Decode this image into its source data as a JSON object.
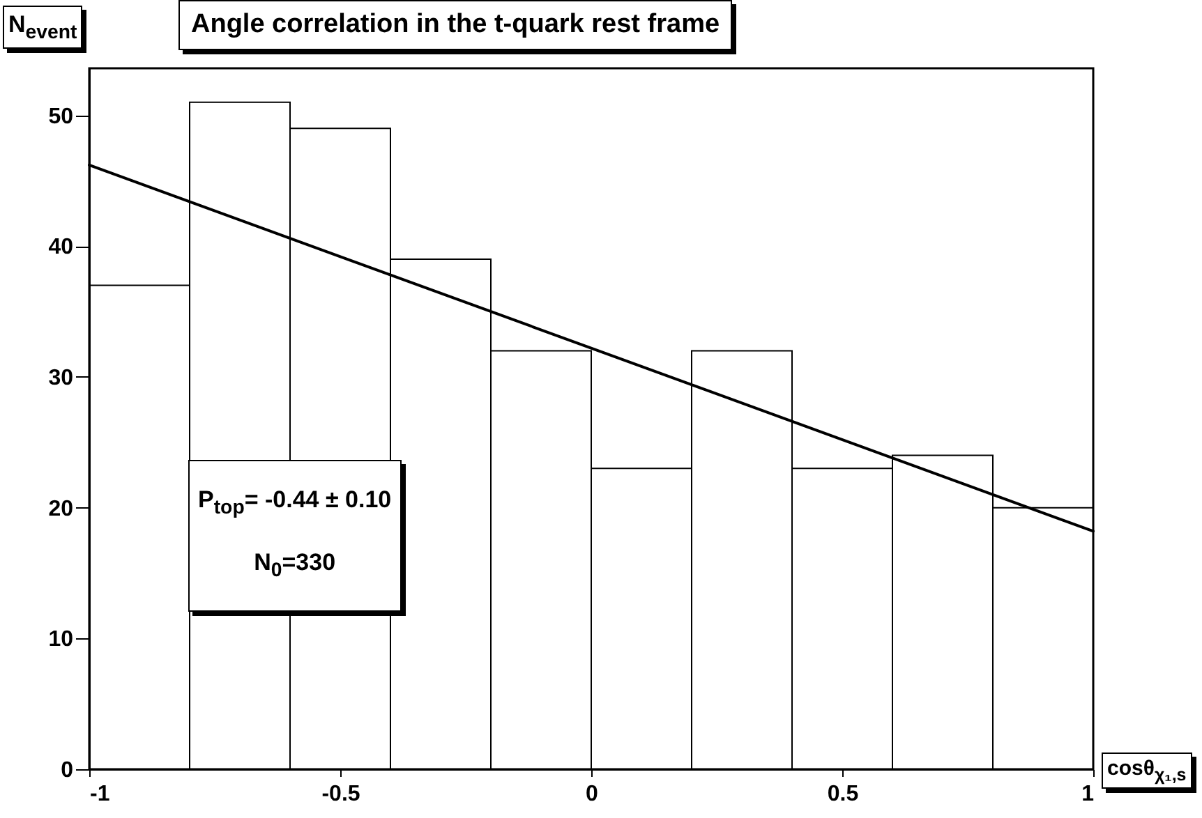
{
  "chart_data": {
    "type": "histogram",
    "title": "Angle correlation in the t-quark rest frame",
    "xlabel": "cosθ$_{χ₁,s}$",
    "ylabel": "N$_{event}$",
    "bins": [
      -1,
      -0.8,
      -0.6,
      -0.4,
      -0.2,
      0,
      0.2,
      0.4,
      0.6,
      0.8,
      1
    ],
    "series": [
      {
        "color": "#000000",
        "values": [
          37,
          51,
          49,
          39,
          32,
          23,
          32,
          23,
          24,
          20
        ]
      },
      {
        "type": "line",
        "color": "#000000",
        "x": [
          -1,
          1
        ],
        "values": [
          46.2,
          18.2
        ]
      }
    ],
    "annotations": [
      "P$_{top}$= -0.44 ± 0.10",
      "N$_{0}$=330"
    ],
    "xlim": [
      -1,
      1
    ],
    "xticks": [
      -1,
      -0.5,
      0,
      0.5,
      1
    ],
    "ylim": [
      0,
      53.6
    ],
    "yticks": [
      0,
      10,
      20,
      30,
      40,
      50
    ],
    "grid": false
  }
}
